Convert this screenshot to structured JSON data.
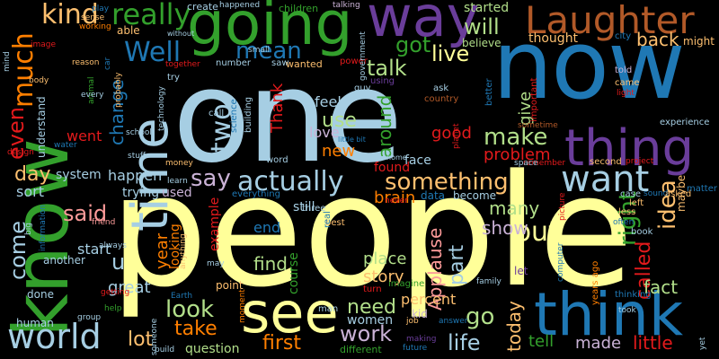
{
  "palette": {
    "light_blue": "#a6cee3",
    "blue": "#1f78b4",
    "light_green": "#b2df8a",
    "green": "#33a02c",
    "pink": "#fb9a99",
    "red": "#e31a1c",
    "light_orange": "#fdbf6f",
    "orange": "#ff7f00",
    "lavender": "#cab2d6",
    "purple": "#6a3d9a",
    "yellow": "#ffff99",
    "brown": "#b15928"
  },
  "words": [
    {
      "text": "people",
      "color": "#ffff99"
    },
    {
      "text": "one",
      "color": "#a6cee3"
    },
    {
      "text": "now",
      "color": "#1f78b4"
    },
    {
      "text": "know",
      "color": "#33a02c"
    },
    {
      "text": "going",
      "color": "#33a02c"
    },
    {
      "text": "way",
      "color": "#6a3d9a"
    },
    {
      "text": "Laughter",
      "color": "#b15928"
    },
    {
      "text": "thing",
      "color": "#6a3d9a"
    },
    {
      "text": "think",
      "color": "#1f78b4"
    },
    {
      "text": "see",
      "color": "#ffff99"
    },
    {
      "text": "time",
      "color": "#a6cee3"
    },
    {
      "text": "want",
      "color": "#a6cee3"
    },
    {
      "text": "actually",
      "color": "#a6cee3"
    },
    {
      "text": "world",
      "color": "#a6cee3"
    },
    {
      "text": "really",
      "color": "#33a02c"
    },
    {
      "text": "kind",
      "color": "#fdbf6f"
    },
    {
      "text": "much",
      "color": "#ff7f00"
    },
    {
      "text": "mean",
      "color": "#1f78b4"
    },
    {
      "text": "Well",
      "color": "#1f78b4"
    },
    {
      "text": "two",
      "color": "#a6cee3"
    },
    {
      "text": "will",
      "color": "#b2df8a"
    },
    {
      "text": "got",
      "color": "#33a02c"
    },
    {
      "text": "live",
      "color": "#ffff99"
    },
    {
      "text": "talk",
      "color": "#b2df8a"
    },
    {
      "text": "make",
      "color": "#b2df8a"
    },
    {
      "text": "something",
      "color": "#fdbf6f"
    },
    {
      "text": "say",
      "color": "#cab2d6"
    },
    {
      "text": "said",
      "color": "#fb9a99"
    },
    {
      "text": "even",
      "color": "#e31a1c"
    },
    {
      "text": "day",
      "color": "#fdbf6f"
    },
    {
      "text": "come",
      "color": "#a6cee3"
    },
    {
      "text": "u",
      "color": "#a6cee3"
    },
    {
      "text": "look",
      "color": "#b2df8a"
    },
    {
      "text": "take",
      "color": "#ff7f00"
    },
    {
      "text": "lot",
      "color": "#fdbf6f"
    },
    {
      "text": "first",
      "color": "#ff7f00"
    },
    {
      "text": "need",
      "color": "#b2df8a"
    },
    {
      "text": "work",
      "color": "#cab2d6"
    },
    {
      "text": "go",
      "color": "#b2df8a"
    },
    {
      "text": "life",
      "color": "#a6cee3"
    },
    {
      "text": "put",
      "color": "#ffff99"
    },
    {
      "text": "right",
      "color": "#33a02c"
    },
    {
      "text": "idea",
      "color": "#fdbf6f"
    },
    {
      "text": "called",
      "color": "#e31a1c"
    },
    {
      "text": "fact",
      "color": "#b2df8a"
    },
    {
      "text": "little",
      "color": "#e31a1c"
    },
    {
      "text": "made",
      "color": "#cab2d6"
    },
    {
      "text": "tell",
      "color": "#33a02c"
    },
    {
      "text": "today",
      "color": "#fdbf6f"
    },
    {
      "text": "many",
      "color": "#b2df8a"
    },
    {
      "text": "show",
      "color": "#cab2d6"
    },
    {
      "text": "part",
      "color": "#a6cee3"
    },
    {
      "text": "story",
      "color": "#fdbf6f"
    },
    {
      "text": "place",
      "color": "#b2df8a"
    },
    {
      "text": "find",
      "color": "#b2df8a"
    },
    {
      "text": "Applause",
      "color": "#fb9a99"
    },
    {
      "text": "problem",
      "color": "#e31a1c"
    },
    {
      "text": "good",
      "color": "#e31a1c"
    },
    {
      "text": "new",
      "color": "#ff7f00"
    },
    {
      "text": "use",
      "color": "#b2df8a"
    },
    {
      "text": "around",
      "color": "#33a02c"
    },
    {
      "text": "give",
      "color": "#b2df8a"
    },
    {
      "text": "back",
      "color": "#fdbf6f"
    },
    {
      "text": "thought",
      "color": "#fdbf6f"
    },
    {
      "text": "started",
      "color": "#b2df8a"
    },
    {
      "text": "believe",
      "color": "#b2df8a"
    },
    {
      "text": "Thank",
      "color": "#e31a1c"
    },
    {
      "text": "feel",
      "color": "#a6cee3"
    },
    {
      "text": "love",
      "color": "#cab2d6"
    },
    {
      "text": "change",
      "color": "#1f78b4"
    },
    {
      "text": "went",
      "color": "#e31a1c"
    },
    {
      "text": "happen",
      "color": "#a6cee3"
    },
    {
      "text": "sort",
      "color": "#a6cee3"
    },
    {
      "text": "system",
      "color": "#a6cee3"
    },
    {
      "text": "start",
      "color": "#a6cee3"
    },
    {
      "text": "great",
      "color": "#a6cee3"
    },
    {
      "text": "year",
      "color": "#ff7f00"
    },
    {
      "text": "used",
      "color": "#cab2d6"
    },
    {
      "text": "trying",
      "color": "#a6cee3"
    },
    {
      "text": "end",
      "color": "#1f78b4"
    },
    {
      "text": "course",
      "color": "#33a02c"
    },
    {
      "text": "women",
      "color": "#a6cee3"
    },
    {
      "text": "percent",
      "color": "#fdbf6f"
    },
    {
      "text": "kid",
      "color": "#cab2d6"
    },
    {
      "text": "brain",
      "color": "#ff7f00"
    },
    {
      "text": "still",
      "color": "#a6cee3"
    },
    {
      "text": "found",
      "color": "#e31a1c"
    },
    {
      "text": "face",
      "color": "#a6cee3"
    },
    {
      "text": "become",
      "color": "#a6cee3"
    },
    {
      "text": "data",
      "color": "#1f78b4"
    },
    {
      "text": "question",
      "color": "#b2df8a"
    },
    {
      "text": "human",
      "color": "#a6cee3"
    },
    {
      "text": "done",
      "color": "#a6cee3"
    },
    {
      "text": "another",
      "color": "#a6cee3"
    },
    {
      "text": "understand",
      "color": "#a6cee3"
    },
    {
      "text": "point",
      "color": "#fdbf6f"
    },
    {
      "text": "looking",
      "color": "#ff7f00"
    },
    {
      "text": "example",
      "color": "#e31a1c"
    },
    {
      "text": "children",
      "color": "#33a02c"
    },
    {
      "text": "create",
      "color": "#a6cee3"
    },
    {
      "text": "able",
      "color": "#fdbf6f"
    },
    {
      "text": "might",
      "color": "#fdbf6f"
    },
    {
      "text": "city",
      "color": "#1f78b4"
    },
    {
      "text": "experience",
      "color": "#a6cee3"
    },
    {
      "text": "maybe",
      "color": "#fdbf6f"
    },
    {
      "text": "matter",
      "color": "#1f78b4"
    },
    {
      "text": "second",
      "color": "#fdbf6f"
    },
    {
      "text": "project",
      "color": "#e31a1c"
    },
    {
      "text": "case",
      "color": "#a6cee3"
    },
    {
      "text": "sound",
      "color": "#1f78b4"
    },
    {
      "text": "asked",
      "color": "#fdbf6f"
    },
    {
      "text": "left",
      "color": "#fdbf6f"
    },
    {
      "text": "less",
      "color": "#fdbf6f"
    },
    {
      "text": "book",
      "color": "#a6cee3"
    },
    {
      "text": "often",
      "color": "#1f78b4"
    },
    {
      "text": "thinking",
      "color": "#1f78b4"
    },
    {
      "text": "years ago",
      "color": "#ff7f00"
    },
    {
      "text": "told",
      "color": "#cab2d6"
    },
    {
      "text": "came",
      "color": "#fdbf6f"
    },
    {
      "text": "light",
      "color": "#e31a1c"
    },
    {
      "text": "ask",
      "color": "#a6cee3"
    },
    {
      "text": "country",
      "color": "#b15928"
    },
    {
      "text": "guy",
      "color": "#a6cee3"
    },
    {
      "text": "using",
      "color": "#6a3d9a"
    },
    {
      "text": "power",
      "color": "#e31a1c"
    },
    {
      "text": "saw",
      "color": "#a6cee3"
    },
    {
      "text": "wanted",
      "color": "#fdbf6f"
    },
    {
      "text": "number",
      "color": "#a6cee3"
    },
    {
      "text": "small",
      "color": "#a6cee3"
    },
    {
      "text": "building",
      "color": "#a6cee3"
    },
    {
      "text": "science",
      "color": "#1f78b4"
    },
    {
      "text": "call",
      "color": "#a6cee3"
    },
    {
      "text": "try",
      "color": "#a6cee3"
    },
    {
      "text": "together",
      "color": "#e31a1c"
    },
    {
      "text": "reason",
      "color": "#fdbf6f"
    },
    {
      "text": "working",
      "color": "#ff7f00"
    },
    {
      "text": "play",
      "color": "#1f78b4"
    },
    {
      "text": "happened",
      "color": "#a6cee3"
    },
    {
      "text": "sense",
      "color": "#fdbf6f"
    },
    {
      "text": "without",
      "color": "#a6cee3"
    },
    {
      "text": "talking",
      "color": "#cab2d6"
    },
    {
      "text": "government",
      "color": "#a6cee3"
    },
    {
      "text": "important",
      "color": "#e31a1c"
    },
    {
      "text": "better",
      "color": "#1f78b4"
    },
    {
      "text": "sometime",
      "color": "#b15928"
    },
    {
      "text": "planet",
      "color": "#e31a1c"
    },
    {
      "text": "remember",
      "color": "#e31a1c"
    },
    {
      "text": "space",
      "color": "#a6cee3"
    },
    {
      "text": "word",
      "color": "#a6cee3"
    },
    {
      "text": "money",
      "color": "#fdbf6f"
    },
    {
      "text": "learn",
      "color": "#a6cee3"
    },
    {
      "text": "everything",
      "color": "#1f78b4"
    },
    {
      "text": "three",
      "color": "#a6cee3"
    },
    {
      "text": "never",
      "color": "#e31a1c"
    },
    {
      "text": "best",
      "color": "#fdbf6f"
    },
    {
      "text": "real",
      "color": "#1f78b4"
    },
    {
      "text": "turn",
      "color": "#e31a1c"
    },
    {
      "text": "man",
      "color": "#a6cee3"
    },
    {
      "text": "imagine",
      "color": "#33a02c"
    },
    {
      "text": "family",
      "color": "#a6cee3"
    },
    {
      "text": "job",
      "color": "#fdbf6f"
    },
    {
      "text": "answer",
      "color": "#1f78b4"
    },
    {
      "text": "making",
      "color": "#6a3d9a"
    },
    {
      "text": "future",
      "color": "#1f78b4"
    },
    {
      "text": "different",
      "color": "#33a02c"
    },
    {
      "text": "moment",
      "color": "#ff7f00"
    },
    {
      "text": "someone",
      "color": "#a6cee3"
    },
    {
      "text": "build",
      "color": "#a6cee3"
    },
    {
      "text": "group",
      "color": "#a6cee3"
    },
    {
      "text": "help",
      "color": "#33a02c"
    },
    {
      "text": "getting",
      "color": "#e31a1c"
    },
    {
      "text": "Earth",
      "color": "#1f78b4"
    },
    {
      "text": "may",
      "color": "#a6cee3"
    },
    {
      "text": "anything",
      "color": "#fdbf6f"
    },
    {
      "text": "always",
      "color": "#a6cee3"
    },
    {
      "text": "big",
      "color": "#a6cee3"
    },
    {
      "text": "information",
      "color": "#1f78b4"
    },
    {
      "text": "friend",
      "color": "#fb9a99"
    },
    {
      "text": "mind",
      "color": "#a6cee3"
    },
    {
      "text": "image",
      "color": "#e31a1c"
    },
    {
      "text": "body",
      "color": "#fdbf6f"
    },
    {
      "text": "design",
      "color": "#e31a1c"
    },
    {
      "text": "water",
      "color": "#1f78b4"
    },
    {
      "text": "school",
      "color": "#a6cee3"
    },
    {
      "text": "stuff",
      "color": "#a6cee3"
    },
    {
      "text": "technology",
      "color": "#a6cee3"
    },
    {
      "text": "probably",
      "color": "#fdbf6f"
    },
    {
      "text": "animal",
      "color": "#33a02c"
    },
    {
      "text": "every",
      "color": "#a6cee3"
    },
    {
      "text": "car",
      "color": "#1f78b4"
    },
    {
      "text": "home",
      "color": "#a6cee3"
    },
    {
      "text": "little bit",
      "color": "#1f78b4"
    },
    {
      "text": "let",
      "color": "#6a3d9a"
    },
    {
      "text": "picture",
      "color": "#e31a1c"
    },
    {
      "text": "computer",
      "color": "#1f78b4"
    },
    {
      "text": "took",
      "color": "#a6cee3"
    },
    {
      "text": "yet",
      "color": "#a6cee3"
    }
  ]
}
